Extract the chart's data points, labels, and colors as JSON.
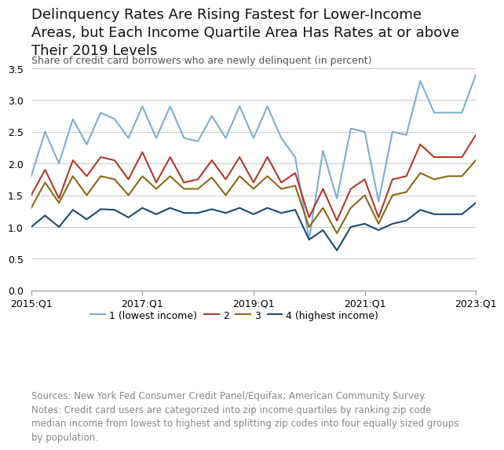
{
  "title": "Delinquency Rates Are Rising Fastest for Lower-Income\nAreas, but Each Income Quartile Area Has Rates at or above\nTheir 2019 Levels",
  "ylabel": "Share of credit card borrowers who are newly delinquent (in percent)",
  "x_labels": [
    "2015:Q1",
    "2017:Q1",
    "2019:Q1",
    "2021:Q1",
    "2023:Q1"
  ],
  "x_ticks_idx": [
    0,
    8,
    16,
    24,
    32
  ],
  "ylim": [
    0,
    3.5
  ],
  "yticks": [
    0,
    0.5,
    1.0,
    1.5,
    2.0,
    2.5,
    3.0,
    3.5
  ],
  "source_text": "Sources: New York Fed Consumer Credit Panel/Equifax; American Community Survey.\nNotes: Credit card users are categorized into zip income quartiles by ranking zip code\nmedian income from lowest to highest and splitting zip codes into four equally sized groups\nby population.",
  "series": {
    "q1": {
      "label": "1 (lowest income)",
      "color": "#7BAFD4",
      "values": [
        1.8,
        2.5,
        2.0,
        2.7,
        2.3,
        2.8,
        2.7,
        2.4,
        2.9,
        2.4,
        2.9,
        2.4,
        2.35,
        2.75,
        2.4,
        2.9,
        2.4,
        2.9,
        2.4,
        2.1,
        0.8,
        2.2,
        1.45,
        2.55,
        2.5,
        1.4,
        2.5,
        2.45,
        3.3,
        2.8,
        2.8,
        2.8,
        3.4
      ]
    },
    "q2": {
      "label": "2",
      "color": "#B5382A",
      "values": [
        1.5,
        1.9,
        1.45,
        2.05,
        1.8,
        2.1,
        2.05,
        1.75,
        2.18,
        1.7,
        2.1,
        1.7,
        1.75,
        2.05,
        1.75,
        2.1,
        1.7,
        2.1,
        1.7,
        1.85,
        1.15,
        1.6,
        1.1,
        1.6,
        1.75,
        1.15,
        1.75,
        1.8,
        2.3,
        2.1,
        2.1,
        2.1,
        2.45
      ]
    },
    "q3": {
      "label": "3",
      "color": "#8B6914",
      "values": [
        1.3,
        1.7,
        1.38,
        1.8,
        1.5,
        1.8,
        1.75,
        1.5,
        1.8,
        1.6,
        1.8,
        1.6,
        1.6,
        1.78,
        1.5,
        1.8,
        1.6,
        1.8,
        1.6,
        1.65,
        1.0,
        1.3,
        0.9,
        1.3,
        1.5,
        1.05,
        1.5,
        1.55,
        1.85,
        1.75,
        1.8,
        1.8,
        2.05
      ]
    },
    "q4": {
      "label": "4 (highest income)",
      "color": "#1C4B73",
      "values": [
        1.0,
        1.18,
        1.0,
        1.27,
        1.12,
        1.28,
        1.27,
        1.15,
        1.3,
        1.2,
        1.3,
        1.22,
        1.22,
        1.28,
        1.22,
        1.3,
        1.2,
        1.3,
        1.22,
        1.27,
        0.8,
        0.95,
        0.63,
        1.0,
        1.05,
        0.95,
        1.05,
        1.1,
        1.27,
        1.2,
        1.2,
        1.2,
        1.38
      ]
    }
  },
  "n_points": 33,
  "background_color": "#FFFFFF",
  "grid_color": "#CCCCCC",
  "title_fontsize": 13,
  "axis_label_fontsize": 9,
  "tick_fontsize": 9,
  "source_fontsize": 8.5,
  "legend_fontsize": 9
}
